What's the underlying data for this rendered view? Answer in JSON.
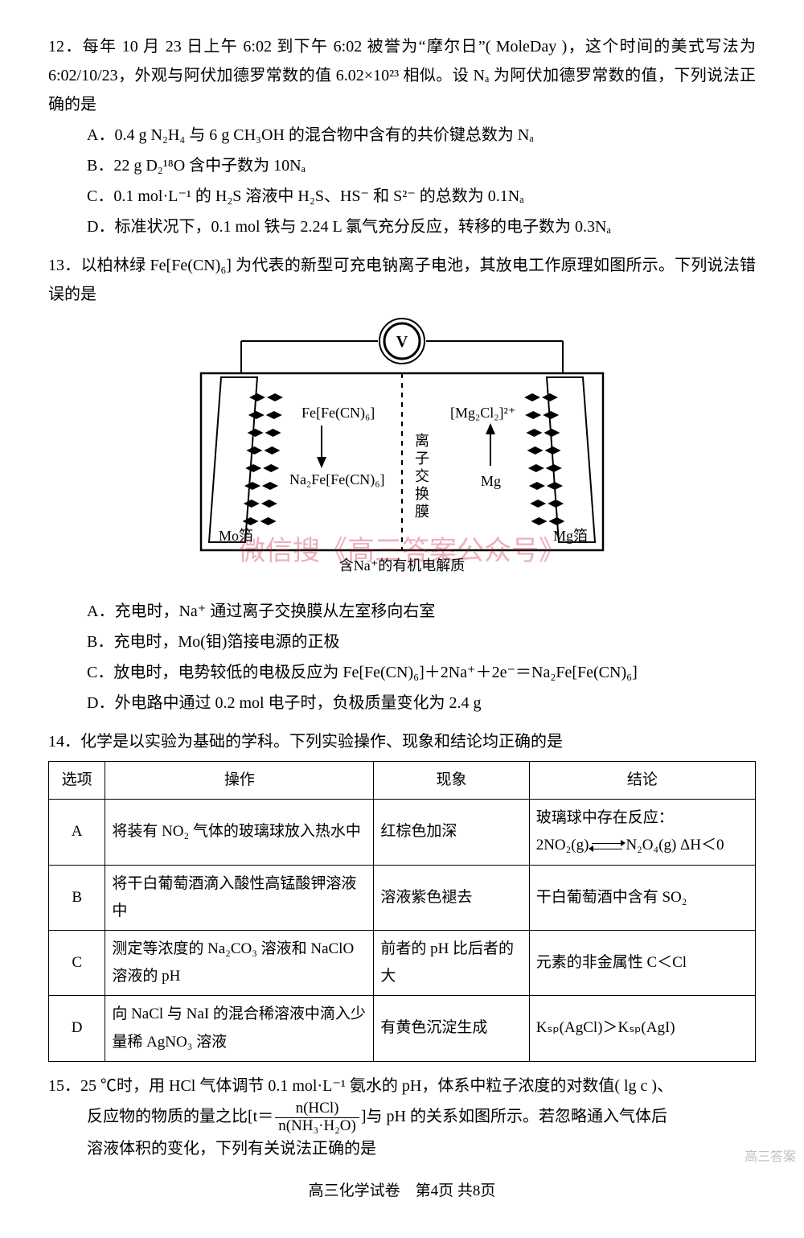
{
  "q12": {
    "num": "12．",
    "stem": "每年 10 月 23 日上午 6:02 到下午 6:02 被誉为“摩尔日”( MoleDay )，这个时间的美式写法为 6:02/10/23，外观与阿伏加德罗常数的值 6.02×10²³ 相似。设 Nₐ 为阿伏加德罗常数的值，下列说法正确的是",
    "A": "A．0.4 g N₂H₄ 与 6 g CH₃OH 的混合物中含有的共价键总数为 Nₐ",
    "B": "B．22 g D₂¹⁸O 含中子数为 10Nₐ",
    "C": "C．0.1 mol·L⁻¹ 的 H₂S 溶液中 H₂S、HS⁻ 和 S²⁻ 的总数为 0.1Nₐ",
    "D": "D．标准状况下，0.1 mol 铁与 2.24 L 氯气充分反应，转移的电子数为 0.3Nₐ"
  },
  "q13": {
    "num": "13．",
    "stem": "以柏林绿 Fe[Fe(CN)₆] 为代表的新型可充电钠离子电池，其放电工作原理如图所示。下列说法错误的是",
    "A": "A．充电时，Na⁺ 通过离子交换膜从左室移向右室",
    "B": "B．充电时，Mo(钼)箔接电源的正极",
    "C": "C．放电时，电势较低的电极反应为 Fe[Fe(CN)₆]＋2Na⁺＋2e⁻＝Na₂Fe[Fe(CN)₆]",
    "D": "D．外电路中通过 0.2 mol 电子时，负极质量变化为 2.4 g",
    "diagram": {
      "left_top": "Fe[Fe(CN)₆]",
      "left_bottom": "Na₂Fe[Fe(CN)₆]",
      "right_top": "[Mg₂Cl₂]²⁺",
      "right_bottom": "Mg",
      "left_foil": "Mo箔",
      "right_foil": "Mg箔",
      "membrane": "离子交换膜",
      "electrolyte": "含Na⁺的有机电解质",
      "voltmeter": "V"
    },
    "watermark": "微信搜《高三答案公众号》"
  },
  "q14": {
    "num": "14．",
    "stem": "化学是以实验为基础的学科。下列实验操作、现象和结论均正确的是",
    "headers": [
      "选项",
      "操作",
      "现象",
      "结论"
    ],
    "rows": [
      {
        "opt": "A",
        "op": "将装有 NO₂ 气体的玻璃球放入热水中",
        "ph": "红棕色加深",
        "con_prefix": "玻璃球中存在反应：",
        "con_eq_left": "2NO₂(g)",
        "con_eq_right": "N₂O₄(g) ΔH＜0"
      },
      {
        "opt": "B",
        "op": "将干白葡萄酒滴入酸性高锰酸钾溶液中",
        "ph": "溶液紫色褪去",
        "con": "干白葡萄酒中含有 SO₂"
      },
      {
        "opt": "C",
        "op": "测定等浓度的 Na₂CO₃ 溶液和 NaClO 溶液的 pH",
        "ph": "前者的 pH 比后者的大",
        "con": "元素的非金属性 C＜Cl"
      },
      {
        "opt": "D",
        "op": "向 NaCl 与 NaI 的混合稀溶液中滴入少量稀 AgNO₃ 溶液",
        "ph": "有黄色沉淀生成",
        "con": "Kₛₚ(AgCl)＞Kₛₚ(AgI)"
      }
    ]
  },
  "q15": {
    "num": "15．",
    "stem_a": "25 ℃时，用 HCl 气体调节 0.1 mol·L⁻¹ 氨水的 pH，体系中粒子浓度的对数值( lg c )、",
    "stem_b_prefix": "反应物的物质的量之比[t＝",
    "frac_top": "n(HCl)",
    "frac_bot": "n(NH₃·H₂O)",
    "stem_b_suffix": "]与 pH 的关系如图所示。若忽略通入气体后",
    "stem_c": "溶液体积的变化，下列有关说法正确的是"
  },
  "footer": "高三化学试卷　第4页 共8页",
  "corner": "高三答案"
}
